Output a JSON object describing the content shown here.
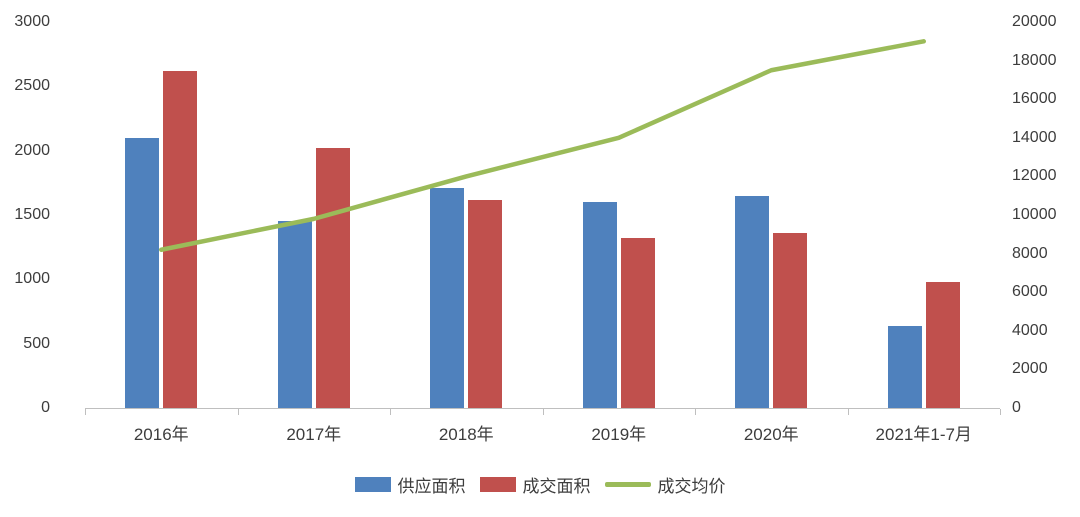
{
  "chart_data": {
    "type": "bar",
    "subtype": "grouped-bars-with-line",
    "title": "",
    "categories": [
      "2016年",
      "2017年",
      "2018年",
      "2019年",
      "2020年",
      "2021年1-7月"
    ],
    "series": [
      {
        "name": "供应面积",
        "type": "bar",
        "axis": "left",
        "color": "#4F81BD",
        "values": [
          2100,
          1450,
          1710,
          1600,
          1650,
          640
        ]
      },
      {
        "name": "成交面积",
        "type": "bar",
        "axis": "left",
        "color": "#C0504D",
        "values": [
          2620,
          2020,
          1620,
          1320,
          1360,
          980
        ]
      },
      {
        "name": "成交均价",
        "type": "line",
        "axis": "right",
        "color": "#9BBB59",
        "values": [
          8200,
          9800,
          12000,
          14000,
          17500,
          19000
        ]
      }
    ],
    "left_axis": {
      "min": 0,
      "max": 3000,
      "step": 500,
      "ticks": [
        "0",
        "500",
        "1000",
        "1500",
        "2000",
        "2500",
        "3000"
      ]
    },
    "right_axis": {
      "min": 0,
      "max": 20000,
      "step": 2000,
      "ticks": [
        "0",
        "2000",
        "4000",
        "6000",
        "8000",
        "10000",
        "12000",
        "14000",
        "16000",
        "18000",
        "20000"
      ]
    },
    "grid": false,
    "legend_position": "bottom",
    "axis_line_color": "#bfbfbf"
  }
}
